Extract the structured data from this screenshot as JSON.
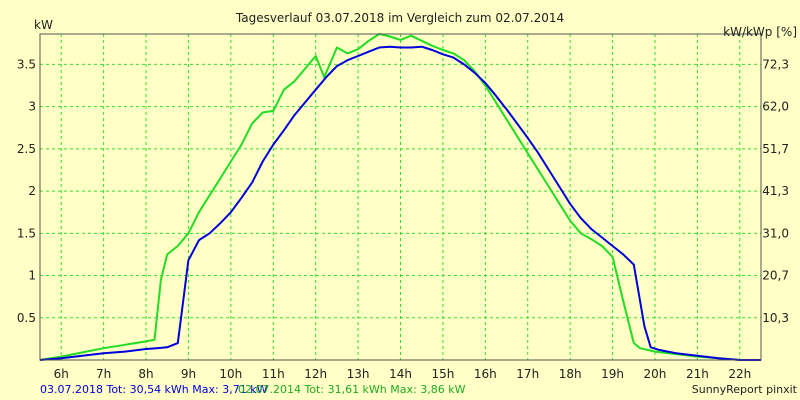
{
  "chart_data": {
    "type": "line",
    "title": "Tagesverlauf 03.07.2018 im Vergleich zum 02.07.2014",
    "ylabel_left": "kW",
    "ylabel_right": "kW/kWp [%]",
    "xlim": [
      5.5,
      22.5
    ],
    "ylim": [
      0,
      3.86
    ],
    "x_ticks": [
      {
        "value": 6,
        "label": "6h"
      },
      {
        "value": 7,
        "label": "7h"
      },
      {
        "value": 8,
        "label": "8h"
      },
      {
        "value": 9,
        "label": "9h"
      },
      {
        "value": 10,
        "label": "10h"
      },
      {
        "value": 11,
        "label": "11h"
      },
      {
        "value": 12,
        "label": "12h"
      },
      {
        "value": 13,
        "label": "13h"
      },
      {
        "value": 14,
        "label": "14h"
      },
      {
        "value": 15,
        "label": "15h"
      },
      {
        "value": 16,
        "label": "16h"
      },
      {
        "value": 17,
        "label": "17h"
      },
      {
        "value": 18,
        "label": "18h"
      },
      {
        "value": 19,
        "label": "19h"
      },
      {
        "value": 20,
        "label": "20h"
      },
      {
        "value": 21,
        "label": "21h"
      },
      {
        "value": 22,
        "label": "22h"
      }
    ],
    "y_ticks_left": [
      {
        "value": 0.5,
        "label": "0.5"
      },
      {
        "value": 1,
        "label": "1"
      },
      {
        "value": 1.5,
        "label": "1.5"
      },
      {
        "value": 2,
        "label": "2"
      },
      {
        "value": 2.5,
        "label": "2.5"
      },
      {
        "value": 3,
        "label": "3"
      },
      {
        "value": 3.5,
        "label": "3.5"
      }
    ],
    "y_ticks_right": [
      {
        "value": 0.5,
        "label": "10,3"
      },
      {
        "value": 1.0,
        "label": "20,7"
      },
      {
        "value": 1.5,
        "label": "31,0"
      },
      {
        "value": 2.0,
        "label": "41,3"
      },
      {
        "value": 2.5,
        "label": "51,7"
      },
      {
        "value": 3.0,
        "label": "62,0"
      },
      {
        "value": 3.5,
        "label": "72,3"
      }
    ],
    "grid": true,
    "legend": "bottom-left",
    "series": [
      {
        "name": "03.07.2018",
        "summary": "03.07.2018 Tot: 30,54 kWh Max: 3,71 kW",
        "color": "#0000dd",
        "x": [
          5.5,
          6.0,
          6.5,
          7.0,
          7.5,
          8.0,
          8.25,
          8.5,
          8.75,
          9.0,
          9.25,
          9.5,
          9.75,
          10.0,
          10.25,
          10.5,
          10.75,
          11.0,
          11.25,
          11.5,
          11.75,
          12.0,
          12.25,
          12.5,
          12.75,
          13.0,
          13.25,
          13.5,
          13.75,
          14.0,
          14.25,
          14.5,
          14.75,
          15.0,
          15.25,
          15.5,
          15.75,
          16.0,
          16.25,
          16.5,
          16.75,
          17.0,
          17.25,
          17.5,
          17.75,
          18.0,
          18.25,
          18.5,
          18.75,
          19.0,
          19.25,
          19.5,
          19.75,
          19.9,
          20.1,
          20.3,
          20.5,
          21.0,
          21.5,
          22.0,
          22.5
        ],
        "values": [
          0.0,
          0.02,
          0.05,
          0.08,
          0.1,
          0.13,
          0.14,
          0.15,
          0.2,
          1.18,
          1.42,
          1.5,
          1.62,
          1.75,
          1.92,
          2.1,
          2.35,
          2.55,
          2.72,
          2.9,
          3.05,
          3.2,
          3.35,
          3.48,
          3.55,
          3.6,
          3.65,
          3.7,
          3.71,
          3.7,
          3.7,
          3.71,
          3.67,
          3.62,
          3.58,
          3.5,
          3.4,
          3.28,
          3.13,
          2.97,
          2.8,
          2.63,
          2.45,
          2.25,
          2.05,
          1.85,
          1.68,
          1.55,
          1.45,
          1.35,
          1.25,
          1.13,
          0.4,
          0.15,
          0.12,
          0.1,
          0.08,
          0.05,
          0.02,
          0.0,
          0.0
        ]
      },
      {
        "name": "02.07.2014",
        "summary": "02.07.2014 Tot: 31,61 kWh Max: 3,86 kW",
        "color": "#22dd22",
        "x": [
          5.5,
          6.0,
          6.5,
          7.0,
          7.5,
          8.0,
          8.2,
          8.35,
          8.5,
          8.75,
          9.0,
          9.25,
          9.5,
          9.75,
          10.0,
          10.25,
          10.5,
          10.75,
          11.0,
          11.25,
          11.5,
          11.75,
          12.0,
          12.2,
          12.35,
          12.5,
          12.75,
          13.0,
          13.25,
          13.5,
          13.75,
          14.0,
          14.25,
          14.5,
          14.75,
          15.0,
          15.25,
          15.5,
          15.75,
          16.0,
          16.25,
          16.5,
          16.75,
          17.0,
          17.25,
          17.5,
          17.75,
          18.0,
          18.25,
          18.5,
          18.75,
          19.0,
          19.25,
          19.5,
          19.65,
          20.0,
          20.5,
          21.0,
          21.5,
          22.0,
          22.5
        ],
        "values": [
          0.0,
          0.04,
          0.09,
          0.14,
          0.18,
          0.22,
          0.24,
          0.95,
          1.25,
          1.35,
          1.5,
          1.75,
          1.95,
          2.15,
          2.35,
          2.55,
          2.8,
          2.93,
          2.95,
          3.2,
          3.3,
          3.45,
          3.6,
          3.35,
          3.52,
          3.7,
          3.63,
          3.68,
          3.78,
          3.86,
          3.83,
          3.79,
          3.84,
          3.78,
          3.72,
          3.67,
          3.63,
          3.55,
          3.42,
          3.25,
          3.05,
          2.85,
          2.65,
          2.45,
          2.25,
          2.05,
          1.85,
          1.65,
          1.5,
          1.43,
          1.35,
          1.22,
          0.7,
          0.2,
          0.14,
          0.1,
          0.07,
          0.04,
          0.02,
          0.0,
          0.0
        ]
      }
    ],
    "footer_right": "SunnyReport pinxit"
  }
}
